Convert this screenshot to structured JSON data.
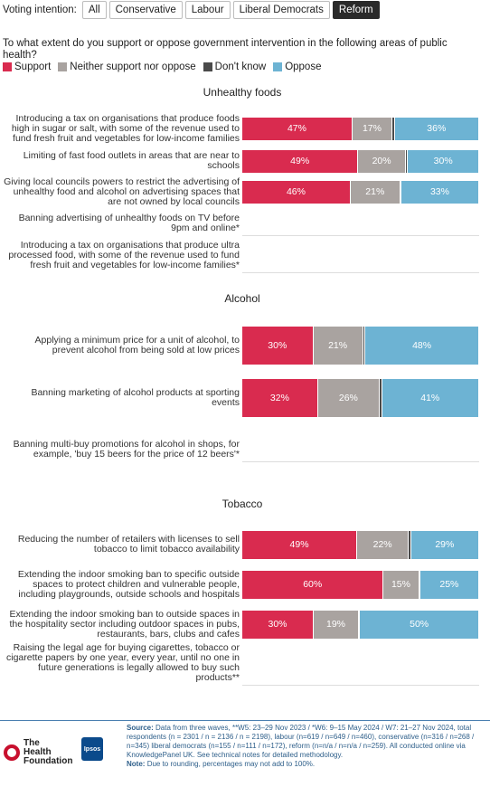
{
  "filters": {
    "label": "Voting intention:",
    "buttons": [
      "All",
      "Conservative",
      "Labour",
      "Liberal Democrats",
      "Reform"
    ],
    "selected": "Reform"
  },
  "question": "To what extent do you support or oppose government intervention in the following areas of public health?",
  "colors": {
    "support": "#d92b4f",
    "neither": "#a9a3a0",
    "dont_know": "#4a4a4a",
    "oppose": "#6db3d3"
  },
  "chart_data": {
    "type": "bar",
    "orientation": "horizontal-stacked-100",
    "legend": [
      "Support",
      "Neither support nor oppose",
      "Don't know",
      "Oppose"
    ],
    "legend_position": "top-left",
    "sections": [
      {
        "title": "Unhealthy foods",
        "rows": [
          {
            "label": "Introducing a tax on organisations that produce foods high in sugar or salt, with some of the revenue used to fund fresh fruit and vegetables for low-income families",
            "values": [
              47,
              17,
              1,
              36
            ]
          },
          {
            "label": "Limiting of fast food outlets in areas that are near to schools",
            "values": [
              49,
              20,
              1,
              30
            ]
          },
          {
            "label": "Giving local councils powers to restrict the advertising of unhealthy food and alcohol on advertising spaces that are not owned by local councils",
            "values": [
              46,
              21,
              0.5,
              33
            ]
          },
          {
            "label": "Banning advertising of unhealthy foods on TV before 9pm and online*",
            "values": null
          },
          {
            "label": "Introducing a tax on organisations that produce ultra processed food, with some of the revenue used to fund fresh fruit and vegetables for low-income families*",
            "values": null
          }
        ]
      },
      {
        "title": "Alcohol",
        "rows": [
          {
            "label": "Applying a minimum price for a unit of alcohol, to prevent alcohol from being sold at low prices",
            "values": [
              30,
              21,
              1,
              48
            ]
          },
          {
            "label": "Banning marketing of alcohol products at sporting events",
            "values": [
              32,
              26,
              1,
              41
            ]
          },
          {
            "label": "Banning multi-buy promotions for alcohol in shops, for example, 'buy 15 beers for the price of 12 beers'*",
            "values": null
          }
        ]
      },
      {
        "title": "Tobacco",
        "rows": [
          {
            "label": "Reducing the number of retailers with licenses to sell tobacco to limit tobacco availability",
            "values": [
              49,
              22,
              1,
              29
            ]
          },
          {
            "label": "Extending the indoor smoking ban to specific outside spaces to protect children and vulnerable people, including playgrounds, outside schools and hospitals",
            "values": [
              60,
              15,
              0.5,
              25
            ]
          },
          {
            "label": "Extending the indoor smoking ban to outside spaces in the hospitality sector including outdoor spaces in pubs, restaurants, bars, clubs and cafes",
            "values": [
              30,
              19,
              0.5,
              50
            ]
          },
          {
            "label": "Raising the legal age for buying cigarettes, tobacco or cigarette papers by one year, every year, until no one in future generations is legally allowed to buy such products**",
            "values": null
          }
        ]
      }
    ]
  },
  "footer": {
    "source_label": "Source:",
    "source_text": "Data from three waves, **W5: 23–29 Nov 2023 / *W6: 9–15 May 2024 / W7: 21–27 Nov 2024, total respondents (n = 2301 / n = 2136 / n = 2198), labour (n=619 / n=649 / n=460), conservative (n=316 / n=268 / n=345) liberal democrats (n=155 / n=111 / n=172), reform (n=n/a / n=n/a / n=259). All conducted online via KnowledgePanel UK. See technical notes for detailed methodology.",
    "note_label": "Note:",
    "note_text": "Due to rounding, percentages may not add to 100%.",
    "thf_logo": "The Health Foundation",
    "ipsos_logo": "Ipsos"
  }
}
